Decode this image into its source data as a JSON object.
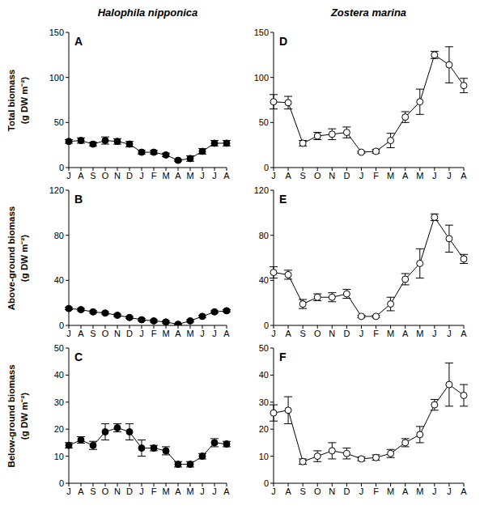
{
  "chart_data": [
    {
      "type": "line",
      "title": "A",
      "subtitle": "Halophila nipponica",
      "ylabel": "Total biomass (g DW m⁻²)",
      "categories": [
        "J",
        "A",
        "S",
        "O",
        "N",
        "D",
        "J",
        "F",
        "M",
        "A",
        "M",
        "J",
        "J",
        "A"
      ],
      "values": [
        29,
        30,
        26,
        30,
        29,
        26,
        17,
        17,
        14,
        8,
        10,
        18,
        27,
        27
      ],
      "errors": [
        2,
        3,
        2,
        4,
        3,
        3,
        2,
        2,
        2,
        1,
        3,
        3,
        3,
        3
      ],
      "color": "#000000",
      "marker": "filled",
      "ylim": [
        0,
        150
      ],
      "yticks": [
        0,
        50,
        100,
        150
      ]
    },
    {
      "type": "line",
      "title": "B",
      "ylabel": "Above-ground biomass (g DW m⁻²)",
      "categories": [
        "J",
        "A",
        "S",
        "O",
        "N",
        "D",
        "J",
        "F",
        "M",
        "A",
        "M",
        "J",
        "J",
        "A"
      ],
      "values": [
        15,
        14,
        12,
        11,
        9,
        7,
        5,
        4,
        3,
        1,
        4,
        8,
        12,
        13
      ],
      "errors": [
        1,
        1,
        1,
        1,
        1,
        1,
        1,
        1,
        1,
        0.5,
        1,
        1,
        1,
        1
      ],
      "color": "#000000",
      "marker": "filled",
      "ylim": [
        0,
        120
      ],
      "yticks": [
        0,
        40,
        80,
        120
      ]
    },
    {
      "type": "line",
      "title": "C",
      "ylabel": "Below-ground biomass (g DW m⁻²)",
      "categories": [
        "J",
        "A",
        "S",
        "O",
        "N",
        "D",
        "J",
        "F",
        "M",
        "A",
        "M",
        "J",
        "J",
        "A"
      ],
      "values": [
        14,
        16,
        14,
        19,
        20.5,
        19,
        13,
        13,
        12,
        7,
        7,
        10,
        15,
        14.5
      ],
      "errors": [
        1,
        1.2,
        1.5,
        3,
        1.5,
        3,
        3,
        1,
        1.5,
        1,
        1,
        1,
        1.5,
        1
      ],
      "color": "#000000",
      "marker": "filled",
      "ylim": [
        0,
        50
      ],
      "yticks": [
        0,
        10,
        20,
        30,
        40,
        50
      ]
    },
    {
      "type": "line",
      "title": "D",
      "subtitle": "Zostera marina",
      "categories": [
        "J",
        "A",
        "S",
        "O",
        "N",
        "D",
        "J",
        "F",
        "M",
        "A",
        "M",
        "J",
        "J",
        "A"
      ],
      "values": [
        73,
        72,
        27,
        35,
        37,
        39,
        17,
        18,
        30,
        56,
        73,
        125,
        114,
        91
      ],
      "errors": [
        8,
        7,
        3,
        4,
        6,
        6,
        1,
        2,
        8,
        6,
        14,
        4,
        20,
        8
      ],
      "color": "#000000",
      "marker": "open",
      "ylim": [
        0,
        150
      ],
      "yticks": [
        0,
        50,
        100,
        150
      ]
    },
    {
      "type": "line",
      "title": "E",
      "categories": [
        "J",
        "A",
        "S",
        "O",
        "N",
        "D",
        "J",
        "F",
        "M",
        "A",
        "M",
        "J",
        "J",
        "A"
      ],
      "values": [
        47,
        45,
        19,
        25,
        25,
        28,
        8,
        8,
        19,
        41,
        55,
        96,
        77,
        59
      ],
      "errors": [
        5,
        4,
        4,
        3,
        4,
        4,
        1,
        1,
        6,
        5,
        13,
        3,
        12,
        4
      ],
      "color": "#000000",
      "marker": "open",
      "ylim": [
        0,
        120
      ],
      "yticks": [
        0,
        40,
        80,
        120
      ]
    },
    {
      "type": "line",
      "title": "F",
      "categories": [
        "J",
        "A",
        "S",
        "O",
        "N",
        "D",
        "J",
        "F",
        "M",
        "A",
        "M",
        "J",
        "J",
        "A"
      ],
      "values": [
        26,
        27,
        8,
        10,
        12,
        11,
        9,
        9.5,
        11,
        15,
        18,
        29,
        36.5,
        32.5
      ],
      "errors": [
        3,
        5,
        1,
        2,
        3,
        2,
        0.7,
        1,
        1.5,
        1.5,
        3,
        2,
        8,
        4
      ],
      "color": "#000000",
      "marker": "open",
      "ylim": [
        0,
        50
      ],
      "yticks": [
        0,
        10,
        20,
        30,
        40,
        50
      ]
    }
  ]
}
